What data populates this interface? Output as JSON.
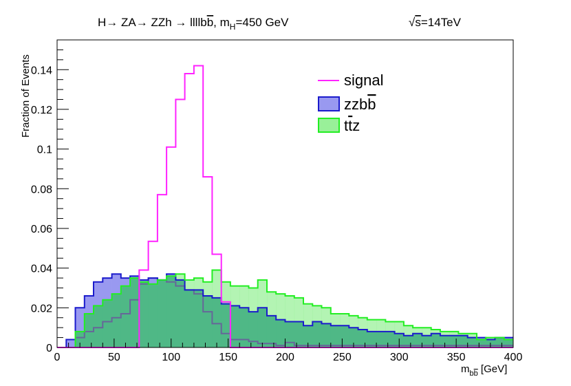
{
  "chart_data": {
    "type": "histogram",
    "title": "H→ ZA→ ZZh → llllbb̅, m_H=450 GeV",
    "title_parts": {
      "main": "H→ ZA→ ZZh → llllb",
      "bbar": "b",
      "mid": ", m",
      "sub": "H",
      "tail": "=450 GeV"
    },
    "energy_label": {
      "sqrt": "√",
      "s": "s",
      "rest": "=14TeV"
    },
    "xlabel": {
      "main": "m",
      "sub": "b",
      "subbar": "b",
      "unit": " [GeV]"
    },
    "ylabel": "Fraction of Events",
    "xlim": [
      0,
      400
    ],
    "ylim": [
      0,
      0.155
    ],
    "bin_edges_start": 0,
    "bin_width": 8,
    "xticks": [
      0,
      50,
      100,
      150,
      200,
      250,
      300,
      350,
      400
    ],
    "xtick_labels": [
      "0",
      "50",
      "100",
      "150",
      "200",
      "250",
      "300",
      "350",
      "400"
    ],
    "yticks": [
      0,
      0.02,
      0.04,
      0.06,
      0.08,
      0.1,
      0.12,
      0.14
    ],
    "ytick_labels": [
      "0",
      "0.02",
      "0.04",
      "0.06",
      "0.08",
      "0.1",
      "0.12",
      "0.14"
    ],
    "legend_position": "top-right",
    "series": [
      {
        "name": "zzbb̅",
        "legend": {
          "main": "zzb",
          "bar": "b"
        },
        "style": "filled",
        "fill": "#9999f0",
        "stroke": "#1a1acc",
        "values": [
          0,
          0.004,
          0.02,
          0.026,
          0.033,
          0.035,
          0.037,
          0.035,
          0.036,
          0.034,
          0.035,
          0.034,
          0.037,
          0.034,
          0.029,
          0.029,
          0.026,
          0.025,
          0.022,
          0.021,
          0.02,
          0.018,
          0.02,
          0.016,
          0.014,
          0.013,
          0.013,
          0.011,
          0.013,
          0.012,
          0.011,
          0.011,
          0.01,
          0.009,
          0.008,
          0.008,
          0.008,
          0.007,
          0.006,
          0.007,
          0.006,
          0.007,
          0.006,
          0.006,
          0.006,
          0.005,
          0.005,
          0.004,
          0.005,
          0.005
        ]
      },
      {
        "name": "tt̅z",
        "legend": {
          "main": "t",
          "bar": "t",
          "tail": "z"
        },
        "style": "filled",
        "fill": "#99f099",
        "stroke": "#22ee22",
        "values": [
          0,
          0,
          0.008,
          0.017,
          0.021,
          0.024,
          0.027,
          0.031,
          0.035,
          0.033,
          0.032,
          0.034,
          0.036,
          0.037,
          0.034,
          0.035,
          0.033,
          0.039,
          0.033,
          0.031,
          0.031,
          0.03,
          0.034,
          0.028,
          0.027,
          0.026,
          0.025,
          0.022,
          0.021,
          0.02,
          0.017,
          0.017,
          0.016,
          0.015,
          0.014,
          0.014,
          0.013,
          0.013,
          0.011,
          0.01,
          0.01,
          0.009,
          0.008,
          0.008,
          0.007,
          0.007,
          0.004,
          0.005,
          0.005,
          0.004
        ]
      },
      {
        "name": "signal",
        "legend": {
          "main": "signal"
        },
        "style": "line",
        "stroke": "#ff22ff",
        "values": [
          0,
          0,
          0,
          0,
          0,
          0,
          0,
          0,
          0,
          0.039,
          0.0535,
          0.077,
          0.101,
          0.125,
          0.138,
          0.142,
          0.086,
          0.047,
          0.023,
          0,
          0,
          0,
          0,
          0,
          0,
          0,
          0,
          0,
          0,
          0,
          0,
          0,
          0,
          0,
          0,
          0,
          0,
          0,
          0,
          0,
          0,
          0,
          0,
          0,
          0,
          0,
          0,
          0,
          0,
          0
        ]
      }
    ],
    "overlay_series": {
      "stroke": "#666699",
      "values": [
        0,
        0,
        0.005,
        0.008,
        0.01,
        0.013,
        0.015,
        0.017,
        0.024,
        0.032,
        0.035,
        0.034,
        0.033,
        0.031,
        0.029,
        0.027,
        0.018,
        0.012,
        0.007,
        0.004,
        0.004,
        0.003,
        0.002,
        0.002,
        0.001,
        0.0025,
        0.001,
        0.001,
        0.001,
        0.001,
        0.001,
        0.001,
        0.001,
        0.001,
        0.001,
        0.001,
        0.001,
        0.001,
        0.001,
        0.001,
        0.001,
        0.001,
        0.001,
        0.001,
        0.001,
        0.001,
        0.001,
        0.001,
        0.001,
        0.001
      ]
    }
  }
}
